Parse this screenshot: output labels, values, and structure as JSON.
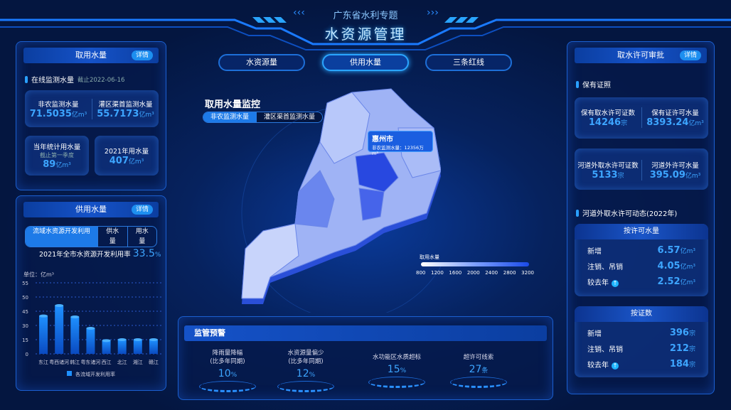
{
  "header": {
    "subtitle": "广东省水利专题",
    "title": "水资源管理"
  },
  "nav": [
    {
      "label": "水资源量"
    },
    {
      "label": "供用水量",
      "active": true
    },
    {
      "label": "三条红线"
    }
  ],
  "left_top": {
    "title": "取用水量",
    "detail": "详情",
    "section": "在线监测水量",
    "date": "截止2022-06-16",
    "metrics": [
      {
        "label": "非农监测水量",
        "value": "71.5035",
        "unit": "亿m³"
      },
      {
        "label": "灌区渠首监测水量",
        "value": "55.7173",
        "unit": "亿m³"
      }
    ],
    "year_stat": {
      "label": "当年统计用水量",
      "note": "截止第一季度",
      "value": "89",
      "unit": "亿m³"
    },
    "y2021": {
      "label": "2021年用水量",
      "value": "407",
      "unit": "亿m³"
    }
  },
  "left_bottom": {
    "title": "供用水量",
    "detail": "详情",
    "tabs": [
      "流域水资源开发利用",
      "供水量",
      "用水量"
    ],
    "rate_label": "2021年全市水资源开发利用率",
    "rate_value": "33.5",
    "rate_unit": "%"
  },
  "chart_data": {
    "type": "bar",
    "ylabel": "单位：亿m³",
    "categories": [
      "东江",
      "粤西诸河",
      "韩江",
      "粤东诸河",
      "西江",
      "北江",
      "湘江",
      "赣江"
    ],
    "series": [
      {
        "name": "各流域开发利用率",
        "values": [
          40,
          47,
          39,
          27,
          14,
          15,
          15,
          15
        ]
      }
    ],
    "yticks": [
      0,
      15,
      30,
      45,
      50,
      55
    ],
    "ylim": [
      0,
      55
    ],
    "grid": true,
    "legend": "bottom",
    "color": "#1e90ff"
  },
  "map": {
    "title": "取用水量监控",
    "tabs": [
      "非农监测水量",
      "灌区渠首监测水量"
    ],
    "tooltip": {
      "city": "惠州市",
      "label": "非农监测水量：",
      "value": "12356",
      "unit": "万m³"
    },
    "legend": {
      "title": "取用水量",
      "ticks": [
        "800",
        "1200",
        "1600",
        "2000",
        "2400",
        "2800",
        "3200"
      ]
    }
  },
  "warning": {
    "title": "监管预警",
    "items": [
      {
        "label": "降雨量降幅",
        "note": "(比多年同期)",
        "value": "10",
        "unit": "%"
      },
      {
        "label": "水资源量偏少",
        "note": "(比多年同期)",
        "value": "12",
        "unit": "%"
      },
      {
        "label": "水功能区水质超标",
        "note": "",
        "value": "15",
        "unit": "%"
      },
      {
        "label": "超许可线索",
        "note": "",
        "value": "27",
        "unit": "条"
      }
    ]
  },
  "right": {
    "title": "取水许可审批",
    "detail": "详情",
    "section1": "保有证照",
    "card1": [
      {
        "label": "保有取水许可证数",
        "value": "14246",
        "unit": "宗"
      },
      {
        "label": "保有证许可水量",
        "value": "8393.24",
        "unit": "亿m³"
      }
    ],
    "card2": [
      {
        "label": "河道外取水许可证数",
        "value": "5133",
        "unit": "宗"
      },
      {
        "label": "河道外许可水量",
        "value": "395.09",
        "unit": "亿m³"
      }
    ],
    "section2": "河道外取水许可动态(2022年)",
    "by_volume": {
      "title": "按许可水量",
      "rows": [
        {
          "label": "新增",
          "value": "6.57",
          "unit": "亿m³"
        },
        {
          "label": "注销、吊销",
          "value": "4.05",
          "unit": "亿m³"
        },
        {
          "label": "较去年",
          "value": "2.52",
          "unit": "亿m³",
          "trend": "up"
        }
      ]
    },
    "by_count": {
      "title": "按证数",
      "rows": [
        {
          "label": "新增",
          "value": "396",
          "unit": "宗"
        },
        {
          "label": "注销、吊销",
          "value": "212",
          "unit": "宗"
        },
        {
          "label": "较去年",
          "value": "184",
          "unit": "宗",
          "trend": "up"
        }
      ]
    }
  }
}
